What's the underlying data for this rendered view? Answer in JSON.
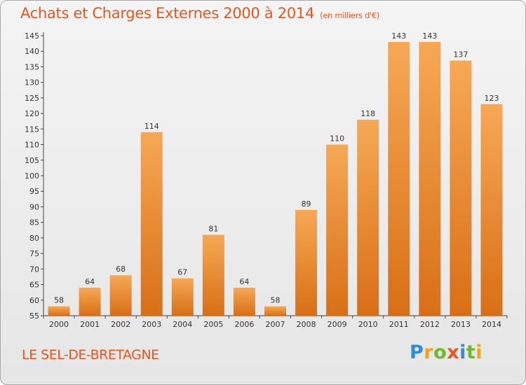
{
  "title": "Achats et Charges Externes 2000 à 2014",
  "unit": "(en milliers d'€)",
  "commune": "LE SEL-DE-BRETAGNE",
  "brand": {
    "letters": [
      "P",
      "r",
      "o",
      "x",
      "i",
      "t",
      "i"
    ],
    "colors": [
      "#2a8fd8",
      "#f2a51a",
      "#6dbb2d",
      "#e8571d",
      "#2a8fd8",
      "#6dbb2d",
      "#f2a51a"
    ]
  },
  "colors": {
    "bar_light": "#f7a855",
    "bar_dark": "#d86f16",
    "accent": "#e8571d"
  },
  "chart_data": {
    "type": "bar",
    "categories": [
      "2000",
      "2001",
      "2002",
      "2003",
      "2004",
      "2005",
      "2006",
      "2007",
      "2008",
      "2009",
      "2010",
      "2011",
      "2012",
      "2013",
      "2014"
    ],
    "values": [
      58,
      64,
      68,
      114,
      67,
      81,
      64,
      58,
      89,
      110,
      118,
      143,
      143,
      137,
      123
    ],
    "ylim": [
      55,
      145
    ],
    "ytick_step": 5,
    "grid": false,
    "xlabel": "",
    "ylabel": ""
  }
}
